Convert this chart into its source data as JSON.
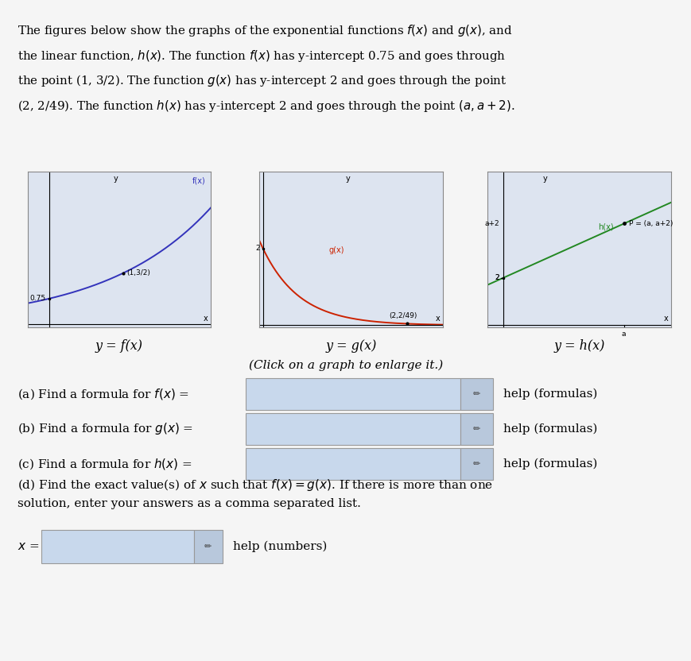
{
  "bg_color": "#f5f5f5",
  "graph_bg": "#dde4f0",
  "graph_border": "#888888",
  "graph1_color": "#3333bb",
  "graph2_color": "#cc2200",
  "graph3_color": "#228822",
  "input_bg": "#c8d8ec",
  "input_border": "#999999",
  "pencil_bg": "#b8c8dc",
  "label_fx": "y = f(x)",
  "label_gx": "y = g(x)",
  "label_hx": "y = h(x)",
  "click_text": "(Click on a graph to enlarge it.)",
  "help_formulas": "help (formulas)",
  "help_numbers": "help (numbers)"
}
